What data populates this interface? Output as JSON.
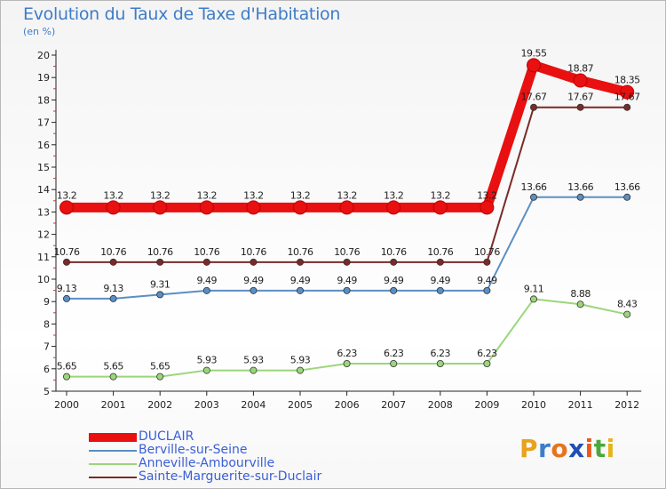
{
  "header": {
    "title": "Evolution du Taux de Taxe d'Habitation",
    "unit": "(en %)"
  },
  "brand": {
    "letters": [
      "P",
      "r",
      "o",
      "x",
      "i",
      "t",
      "i"
    ],
    "colors": [
      "#e8a21c",
      "#3d7cc9",
      "#e8731c",
      "#1f4fb4",
      "#e85a1c",
      "#4aa83c",
      "#e8b21c"
    ]
  },
  "chart_data": {
    "type": "line",
    "title": "Evolution du Taux de Taxe d'Habitation",
    "ylabel": "(en %)",
    "xlabel": "",
    "x": [
      "2000",
      "2001",
      "2002",
      "2003",
      "2004",
      "2005",
      "2006",
      "2007",
      "2008",
      "2009",
      "2010",
      "2011",
      "2012"
    ],
    "ylim": [
      5,
      20
    ],
    "yticks": [
      "5",
      "6",
      "7",
      "8",
      "9",
      "10",
      "11",
      "12",
      "13",
      "14",
      "15",
      "16",
      "17",
      "18",
      "19",
      "20"
    ],
    "grid": false,
    "legend": "bottom-left",
    "series": [
      {
        "name": "DUCLAIR",
        "color": "#e81010",
        "values": [
          13.2,
          13.2,
          13.2,
          13.2,
          13.2,
          13.2,
          13.2,
          13.2,
          13.2,
          13.2,
          19.55,
          18.87,
          18.35
        ],
        "labels": [
          "13.2",
          "13.2",
          "13.2",
          "13.2",
          "13.2",
          "13.2",
          "13.2",
          "13.2",
          "13.2",
          "13.2",
          "19.55",
          "18.87",
          "18.35"
        ]
      },
      {
        "name": "Berville-sur-Seine",
        "color": "#5b8fc4",
        "values": [
          9.13,
          9.13,
          9.31,
          9.49,
          9.49,
          9.49,
          9.49,
          9.49,
          9.49,
          9.49,
          13.66,
          13.66,
          13.66
        ],
        "labels": [
          "9.13",
          "9.13",
          "9.31",
          "9.49",
          "9.49",
          "9.49",
          "9.49",
          "9.49",
          "9.49",
          "9.49",
          "13.66",
          "13.66",
          "13.66"
        ]
      },
      {
        "name": "Anneville-Ambourville",
        "color": "#9bd67a",
        "values": [
          5.65,
          5.65,
          5.65,
          5.93,
          5.93,
          5.93,
          6.23,
          6.23,
          6.23,
          6.23,
          9.11,
          8.88,
          8.43
        ],
        "labels": [
          "5.65",
          "5.65",
          "5.65",
          "5.93",
          "5.93",
          "5.93",
          "6.23",
          "6.23",
          "6.23",
          "6.23",
          "9.11",
          "8.88",
          "8.43"
        ]
      },
      {
        "name": "Sainte-Marguerite-sur-Duclair",
        "color": "#7a2a2a",
        "values": [
          10.76,
          10.76,
          10.76,
          10.76,
          10.76,
          10.76,
          10.76,
          10.76,
          10.76,
          10.76,
          17.67,
          17.67,
          17.67
        ],
        "labels": [
          "10.76",
          "10.76",
          "10.76",
          "10.76",
          "10.76",
          "10.76",
          "10.76",
          "10.76",
          "10.76",
          "10.76",
          "17.67",
          "17.67",
          "17.67"
        ]
      }
    ]
  }
}
